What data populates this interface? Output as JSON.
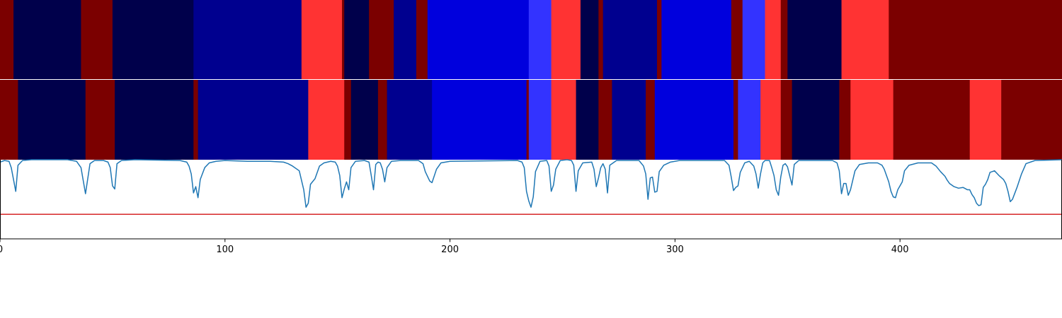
{
  "chart_data": {
    "type": "segmentation-strips-with-line",
    "xlim": [
      0,
      472
    ],
    "xticks": [
      0,
      100,
      200,
      300,
      400
    ],
    "palette": {
      "dark_red": "#7b0000",
      "red": "#ff3333",
      "navy": "#00004b",
      "dark_blue": "#00008f",
      "blue": "#0000dd",
      "light_blue": "#3333ff"
    },
    "strips": [
      {
        "segments": [
          {
            "start": 0,
            "end": 6,
            "color": "dark_red"
          },
          {
            "start": 6,
            "end": 36,
            "color": "navy"
          },
          {
            "start": 36,
            "end": 50,
            "color": "dark_red"
          },
          {
            "start": 50,
            "end": 86,
            "color": "navy"
          },
          {
            "start": 86,
            "end": 134,
            "color": "dark_blue"
          },
          {
            "start": 134,
            "end": 152,
            "color": "red"
          },
          {
            "start": 152,
            "end": 153,
            "color": "dark_red"
          },
          {
            "start": 153,
            "end": 164,
            "color": "navy"
          },
          {
            "start": 164,
            "end": 175,
            "color": "dark_red"
          },
          {
            "start": 175,
            "end": 185,
            "color": "dark_blue"
          },
          {
            "start": 185,
            "end": 190,
            "color": "dark_red"
          },
          {
            "start": 190,
            "end": 235,
            "color": "blue"
          },
          {
            "start": 235,
            "end": 245,
            "color": "light_blue"
          },
          {
            "start": 245,
            "end": 258,
            "color": "red"
          },
          {
            "start": 258,
            "end": 266,
            "color": "navy"
          },
          {
            "start": 266,
            "end": 268,
            "color": "dark_red"
          },
          {
            "start": 268,
            "end": 292,
            "color": "dark_blue"
          },
          {
            "start": 292,
            "end": 294,
            "color": "dark_red"
          },
          {
            "start": 294,
            "end": 325,
            "color": "blue"
          },
          {
            "start": 325,
            "end": 330,
            "color": "dark_red"
          },
          {
            "start": 330,
            "end": 340,
            "color": "light_blue"
          },
          {
            "start": 340,
            "end": 347,
            "color": "red"
          },
          {
            "start": 347,
            "end": 350,
            "color": "dark_red"
          },
          {
            "start": 350,
            "end": 374,
            "color": "navy"
          },
          {
            "start": 374,
            "end": 395,
            "color": "red"
          },
          {
            "start": 395,
            "end": 472,
            "color": "dark_red"
          }
        ]
      },
      {
        "segments": [
          {
            "start": 0,
            "end": 8,
            "color": "dark_red"
          },
          {
            "start": 8,
            "end": 38,
            "color": "navy"
          },
          {
            "start": 38,
            "end": 51,
            "color": "dark_red"
          },
          {
            "start": 51,
            "end": 86,
            "color": "navy"
          },
          {
            "start": 86,
            "end": 88,
            "color": "dark_red"
          },
          {
            "start": 88,
            "end": 137,
            "color": "dark_blue"
          },
          {
            "start": 137,
            "end": 153,
            "color": "red"
          },
          {
            "start": 153,
            "end": 156,
            "color": "dark_red"
          },
          {
            "start": 156,
            "end": 168,
            "color": "navy"
          },
          {
            "start": 168,
            "end": 172,
            "color": "dark_red"
          },
          {
            "start": 172,
            "end": 192,
            "color": "dark_blue"
          },
          {
            "start": 192,
            "end": 234,
            "color": "blue"
          },
          {
            "start": 234,
            "end": 235,
            "color": "dark_red"
          },
          {
            "start": 235,
            "end": 245,
            "color": "light_blue"
          },
          {
            "start": 245,
            "end": 256,
            "color": "red"
          },
          {
            "start": 256,
            "end": 266,
            "color": "navy"
          },
          {
            "start": 266,
            "end": 272,
            "color": "dark_red"
          },
          {
            "start": 272,
            "end": 287,
            "color": "dark_blue"
          },
          {
            "start": 287,
            "end": 291,
            "color": "dark_red"
          },
          {
            "start": 291,
            "end": 326,
            "color": "blue"
          },
          {
            "start": 326,
            "end": 328,
            "color": "dark_red"
          },
          {
            "start": 328,
            "end": 338,
            "color": "light_blue"
          },
          {
            "start": 338,
            "end": 347,
            "color": "red"
          },
          {
            "start": 347,
            "end": 352,
            "color": "dark_red"
          },
          {
            "start": 352,
            "end": 373,
            "color": "navy"
          },
          {
            "start": 373,
            "end": 378,
            "color": "dark_red"
          },
          {
            "start": 378,
            "end": 397,
            "color": "red"
          },
          {
            "start": 397,
            "end": 431,
            "color": "dark_red"
          },
          {
            "start": 431,
            "end": 445,
            "color": "red"
          },
          {
            "start": 445,
            "end": 472,
            "color": "dark_red"
          }
        ]
      }
    ],
    "line": {
      "color": "#1f77b4",
      "ylim": [
        0,
        1
      ],
      "threshold": 0.31,
      "threshold_color": "#d62728",
      "points": [
        [
          0,
          0.97
        ],
        [
          2,
          0.99
        ],
        [
          4,
          0.98
        ],
        [
          5,
          0.9
        ],
        [
          7,
          0.6
        ],
        [
          8,
          0.93
        ],
        [
          10,
          0.99
        ],
        [
          14,
          1.0
        ],
        [
          30,
          1.0
        ],
        [
          34,
          0.98
        ],
        [
          36,
          0.9
        ],
        [
          38,
          0.57
        ],
        [
          40,
          0.95
        ],
        [
          42,
          0.99
        ],
        [
          46,
          0.99
        ],
        [
          48,
          0.97
        ],
        [
          49,
          0.9
        ],
        [
          50,
          0.67
        ],
        [
          51,
          0.63
        ],
        [
          52,
          0.95
        ],
        [
          54,
          0.99
        ],
        [
          60,
          1.0
        ],
        [
          80,
          0.99
        ],
        [
          83,
          0.97
        ],
        [
          84,
          0.92
        ],
        [
          85,
          0.82
        ],
        [
          86,
          0.58
        ],
        [
          87,
          0.66
        ],
        [
          88,
          0.52
        ],
        [
          89,
          0.75
        ],
        [
          91,
          0.9
        ],
        [
          93,
          0.96
        ],
        [
          96,
          0.98
        ],
        [
          100,
          0.99
        ],
        [
          110,
          0.98
        ],
        [
          115,
          0.98
        ],
        [
          120,
          0.98
        ],
        [
          126,
          0.97
        ],
        [
          128,
          0.95
        ],
        [
          130,
          0.92
        ],
        [
          133,
          0.86
        ],
        [
          135,
          0.62
        ],
        [
          136,
          0.4
        ],
        [
          137,
          0.45
        ],
        [
          138,
          0.69
        ],
        [
          140,
          0.76
        ],
        [
          142,
          0.92
        ],
        [
          144,
          0.96
        ],
        [
          147,
          0.98
        ],
        [
          149,
          0.97
        ],
        [
          150,
          0.92
        ],
        [
          151,
          0.8
        ],
        [
          152,
          0.52
        ],
        [
          153,
          0.63
        ],
        [
          154,
          0.72
        ],
        [
          155,
          0.62
        ],
        [
          156,
          0.9
        ],
        [
          158,
          0.98
        ],
        [
          162,
          0.99
        ],
        [
          164,
          0.97
        ],
        [
          165,
          0.8
        ],
        [
          166,
          0.62
        ],
        [
          167,
          0.94
        ],
        [
          168,
          0.97
        ],
        [
          169,
          0.96
        ],
        [
          170,
          0.88
        ],
        [
          171,
          0.72
        ],
        [
          172,
          0.9
        ],
        [
          174,
          0.98
        ],
        [
          178,
          0.99
        ],
        [
          186,
          0.99
        ],
        [
          188,
          0.95
        ],
        [
          189,
          0.85
        ],
        [
          191,
          0.73
        ],
        [
          192,
          0.71
        ],
        [
          194,
          0.88
        ],
        [
          196,
          0.96
        ],
        [
          200,
          0.98
        ],
        [
          230,
          0.99
        ],
        [
          232,
          0.97
        ],
        [
          233,
          0.9
        ],
        [
          234,
          0.6
        ],
        [
          235,
          0.48
        ],
        [
          236,
          0.4
        ],
        [
          237,
          0.53
        ],
        [
          238,
          0.85
        ],
        [
          240,
          0.98
        ],
        [
          243,
          0.99
        ],
        [
          244,
          0.92
        ],
        [
          245,
          0.6
        ],
        [
          246,
          0.68
        ],
        [
          247,
          0.88
        ],
        [
          249,
          0.99
        ],
        [
          252,
          1.0
        ],
        [
          254,
          0.99
        ],
        [
          255,
          0.93
        ],
        [
          256,
          0.6
        ],
        [
          257,
          0.86
        ],
        [
          259,
          0.96
        ],
        [
          263,
          0.97
        ],
        [
          264,
          0.88
        ],
        [
          265,
          0.66
        ],
        [
          266,
          0.77
        ],
        [
          267,
          0.9
        ],
        [
          268,
          0.95
        ],
        [
          269,
          0.88
        ],
        [
          270,
          0.58
        ],
        [
          271,
          0.93
        ],
        [
          274,
          0.99
        ],
        [
          284,
          0.99
        ],
        [
          286,
          0.92
        ],
        [
          287,
          0.82
        ],
        [
          288,
          0.5
        ],
        [
          289,
          0.77
        ],
        [
          290,
          0.78
        ],
        [
          291,
          0.59
        ],
        [
          292,
          0.6
        ],
        [
          293,
          0.85
        ],
        [
          295,
          0.93
        ],
        [
          298,
          0.97
        ],
        [
          302,
          0.99
        ],
        [
          322,
          0.99
        ],
        [
          324,
          0.93
        ],
        [
          325,
          0.78
        ],
        [
          326,
          0.61
        ],
        [
          327,
          0.65
        ],
        [
          328,
          0.67
        ],
        [
          329,
          0.84
        ],
        [
          331,
          0.96
        ],
        [
          333,
          0.98
        ],
        [
          335,
          0.92
        ],
        [
          336,
          0.82
        ],
        [
          337,
          0.64
        ],
        [
          338,
          0.82
        ],
        [
          339,
          0.96
        ],
        [
          340,
          0.99
        ],
        [
          342,
          0.99
        ],
        [
          343,
          0.9
        ],
        [
          344,
          0.8
        ],
        [
          345,
          0.62
        ],
        [
          346,
          0.55
        ],
        [
          347,
          0.78
        ],
        [
          348,
          0.93
        ],
        [
          349,
          0.95
        ],
        [
          350,
          0.91
        ],
        [
          352,
          0.68
        ],
        [
          353,
          0.94
        ],
        [
          355,
          0.99
        ],
        [
          370,
          0.99
        ],
        [
          372,
          0.96
        ],
        [
          373,
          0.86
        ],
        [
          374,
          0.57
        ],
        [
          375,
          0.7
        ],
        [
          376,
          0.7
        ],
        [
          377,
          0.55
        ],
        [
          378,
          0.62
        ],
        [
          380,
          0.86
        ],
        [
          382,
          0.94
        ],
        [
          386,
          0.96
        ],
        [
          390,
          0.96
        ],
        [
          392,
          0.93
        ],
        [
          393,
          0.88
        ],
        [
          395,
          0.72
        ],
        [
          396,
          0.6
        ],
        [
          397,
          0.53
        ],
        [
          398,
          0.52
        ],
        [
          399,
          0.62
        ],
        [
          401,
          0.72
        ],
        [
          402,
          0.86
        ],
        [
          404,
          0.93
        ],
        [
          408,
          0.96
        ],
        [
          414,
          0.96
        ],
        [
          416,
          0.92
        ],
        [
          418,
          0.85
        ],
        [
          420,
          0.79
        ],
        [
          421,
          0.74
        ],
        [
          422,
          0.7
        ],
        [
          424,
          0.66
        ],
        [
          426,
          0.64
        ],
        [
          428,
          0.65
        ],
        [
          430,
          0.62
        ],
        [
          431,
          0.62
        ],
        [
          432,
          0.56
        ],
        [
          433,
          0.52
        ],
        [
          434,
          0.45
        ],
        [
          435,
          0.42
        ],
        [
          436,
          0.43
        ],
        [
          437,
          0.65
        ],
        [
          438,
          0.69
        ],
        [
          439,
          0.75
        ],
        [
          440,
          0.84
        ],
        [
          441,
          0.85
        ],
        [
          442,
          0.86
        ],
        [
          444,
          0.8
        ],
        [
          446,
          0.75
        ],
        [
          447,
          0.7
        ],
        [
          448,
          0.6
        ],
        [
          449,
          0.47
        ],
        [
          450,
          0.5
        ],
        [
          452,
          0.65
        ],
        [
          454,
          0.82
        ],
        [
          456,
          0.95
        ],
        [
          460,
          0.99
        ],
        [
          472,
          1.0
        ]
      ]
    }
  }
}
